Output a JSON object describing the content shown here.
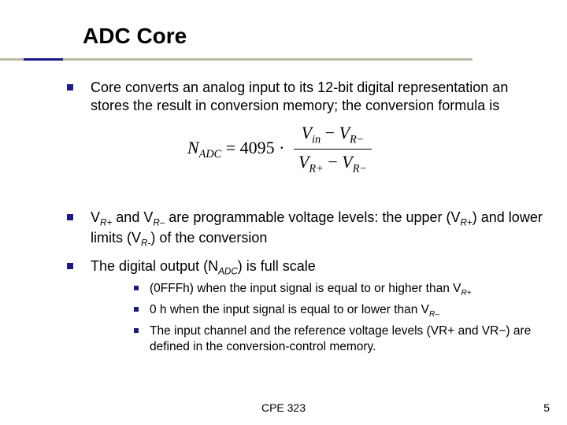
{
  "title": "ADC Core",
  "bullets": {
    "b1": "Core converts an analog input to its 12-bit digital representation an stores the result in conversion memory; the conversion formula is",
    "b2_pre": "V",
    "b2_sub1": "R+",
    "b2_mid1": " and V",
    "b2_sub2": "R–",
    "b2_mid2": " are programmable voltage levels: the upper (V",
    "b2_sub3": "R+",
    "b2_mid3": ") and lower limits (V",
    "b2_sub4": "R-",
    "b2_end": ") of the conversion",
    "b3_pre": "The digital output (N",
    "b3_sub": "ADC",
    "b3_end": ") is full scale",
    "sub1_pre": "(0FFFh) when the input signal is equal to or higher than V",
    "sub1_sub": "R+",
    "sub2_pre": "0 h when the input signal is equal to or lower than V",
    "sub2_sub": "R–",
    "sub3": "The input channel and the reference voltage levels (VR+ and VR−) are defined in the conversion-control memory."
  },
  "formula": {
    "lhs_N": "N",
    "lhs_sub": "ADC",
    "eq": " = ",
    "coef": "4095",
    "dot": " · ",
    "num_v1": "V",
    "num_s1": "in",
    "minus": " − ",
    "num_v2": "V",
    "num_s2": "R−",
    "den_v1": "V",
    "den_s1": "R+",
    "den_v2": "V",
    "den_s2": "R−"
  },
  "footer": {
    "course": "CPE 323",
    "page": "5"
  },
  "colors": {
    "accent": "#1a1a8a",
    "rule": "#b9b9a3"
  }
}
